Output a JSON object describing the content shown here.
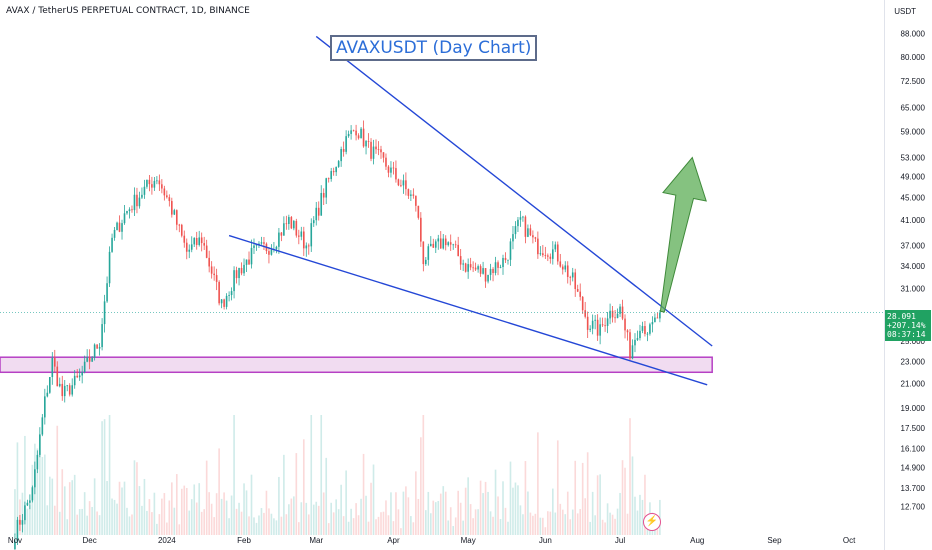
{
  "header": {
    "symbol": "AVAX / TetherUS PERPETUAL CONTRACT, 1D, BINANCE"
  },
  "title": "AVAXUSDT (Day Chart)",
  "price_axis": {
    "unit": "USDT"
  },
  "last_price_badge": {
    "price": "28.091",
    "change": "+207.14%",
    "countdown": "08:37:14"
  },
  "icons": {
    "bolt": "lightning-icon"
  },
  "colors": {
    "up": "#26a69a",
    "down": "#ef5350",
    "trendline": "#2447d6",
    "zone_fill": "#f1dcf1",
    "zone_border": "#b640c4",
    "arrow": "#5cae55",
    "badge": "#20a262",
    "title": "#2c6ed8"
  },
  "chart_data": {
    "type": "candlestick",
    "log_scale": true,
    "xlim": [
      "2023-10-26",
      "2024-10-15"
    ],
    "ylim": [
      11.3,
      95
    ],
    "x_ticks": [
      {
        "date": "2023-11-01",
        "label": "Nov"
      },
      {
        "date": "2023-12-01",
        "label": "Dec"
      },
      {
        "date": "2024-01-01",
        "label": "2024"
      },
      {
        "date": "2024-02-01",
        "label": "Feb"
      },
      {
        "date": "2024-03-01",
        "label": "Mar"
      },
      {
        "date": "2024-04-01",
        "label": "Apr"
      },
      {
        "date": "2024-05-01",
        "label": "May"
      },
      {
        "date": "2024-06-01",
        "label": "Jun"
      },
      {
        "date": "2024-07-01",
        "label": "Jul"
      },
      {
        "date": "2024-08-01",
        "label": "Aug"
      },
      {
        "date": "2024-09-01",
        "label": "Sep"
      },
      {
        "date": "2024-10-01",
        "label": "Oct"
      }
    ],
    "y_ticks": [
      88,
      80,
      72.5,
      65,
      59,
      53,
      49,
      45,
      41,
      37,
      34,
      31,
      25,
      23,
      21,
      19,
      17.5,
      16.1,
      14.9,
      13.7,
      12.7
    ],
    "y_tick_labels": [
      "88.000",
      "80.000",
      "72.500",
      "65.000",
      "59.000",
      "53.000",
      "49.000",
      "45.000",
      "41.000",
      "37.000",
      "34.000",
      "31.000",
      "25.000",
      "23.000",
      "21.000",
      "19.000",
      "17.500",
      "16.100",
      "14.900",
      "13.700",
      "12.700"
    ],
    "close_path": [
      [
        "2023-11-01",
        11.4
      ],
      [
        "2023-11-08",
        13.5
      ],
      [
        "2023-11-13",
        19.5
      ],
      [
        "2023-11-16",
        23.0
      ],
      [
        "2023-11-20",
        20.0
      ],
      [
        "2023-11-27",
        21.5
      ],
      [
        "2023-12-05",
        25.0
      ],
      [
        "2023-12-10",
        38.0
      ],
      [
        "2023-12-15",
        42.0
      ],
      [
        "2023-12-22",
        46.0
      ],
      [
        "2023-12-28",
        49.0
      ],
      [
        "2024-01-02",
        44.0
      ],
      [
        "2024-01-09",
        36.0
      ],
      [
        "2024-01-15",
        38.0
      ],
      [
        "2024-01-23",
        29.0
      ],
      [
        "2024-01-29",
        33.0
      ],
      [
        "2024-02-05",
        36.0
      ],
      [
        "2024-02-12",
        37.0
      ],
      [
        "2024-02-19",
        41.0
      ],
      [
        "2024-02-26",
        37.0
      ],
      [
        "2024-03-04",
        46.0
      ],
      [
        "2024-03-12",
        56.0
      ],
      [
        "2024-03-17",
        60.0
      ],
      [
        "2024-03-22",
        55.0
      ],
      [
        "2024-03-28",
        52.0
      ],
      [
        "2024-04-05",
        47.0
      ],
      [
        "2024-04-10",
        44.0
      ],
      [
        "2024-04-13",
        35.0
      ],
      [
        "2024-04-22",
        38.0
      ],
      [
        "2024-04-30",
        34.0
      ],
      [
        "2024-05-08",
        33.0
      ],
      [
        "2024-05-16",
        35.0
      ],
      [
        "2024-05-22",
        41.0
      ],
      [
        "2024-05-28",
        37.0
      ],
      [
        "2024-06-05",
        36.0
      ],
      [
        "2024-06-12",
        32.0
      ],
      [
        "2024-06-18",
        27.0
      ],
      [
        "2024-06-23",
        26.0
      ],
      [
        "2024-06-26",
        28.0
      ],
      [
        "2024-07-01",
        28.5
      ],
      [
        "2024-07-05",
        24.0
      ],
      [
        "2024-07-09",
        27.0
      ],
      [
        "2024-07-13",
        26.0
      ],
      [
        "2024-07-17",
        28.091
      ]
    ],
    "annotations": {
      "falling_wedge_upper": [
        [
          "2024-03-01",
          87.0
        ],
        [
          "2024-08-07",
          24.5
        ]
      ],
      "falling_wedge_lower": [
        [
          "2024-01-26",
          38.5
        ],
        [
          "2024-08-05",
          20.9
        ]
      ],
      "support_zone": {
        "from": "2023-10-26",
        "to": "2024-08-07",
        "low": 22.0,
        "high": 23.4
      },
      "breakout_arrow": {
        "from": [
          "2024-07-18",
          28.2
        ],
        "to": [
          "2024-07-30",
          53.0
        ]
      },
      "last_price_line": 28.091
    }
  }
}
